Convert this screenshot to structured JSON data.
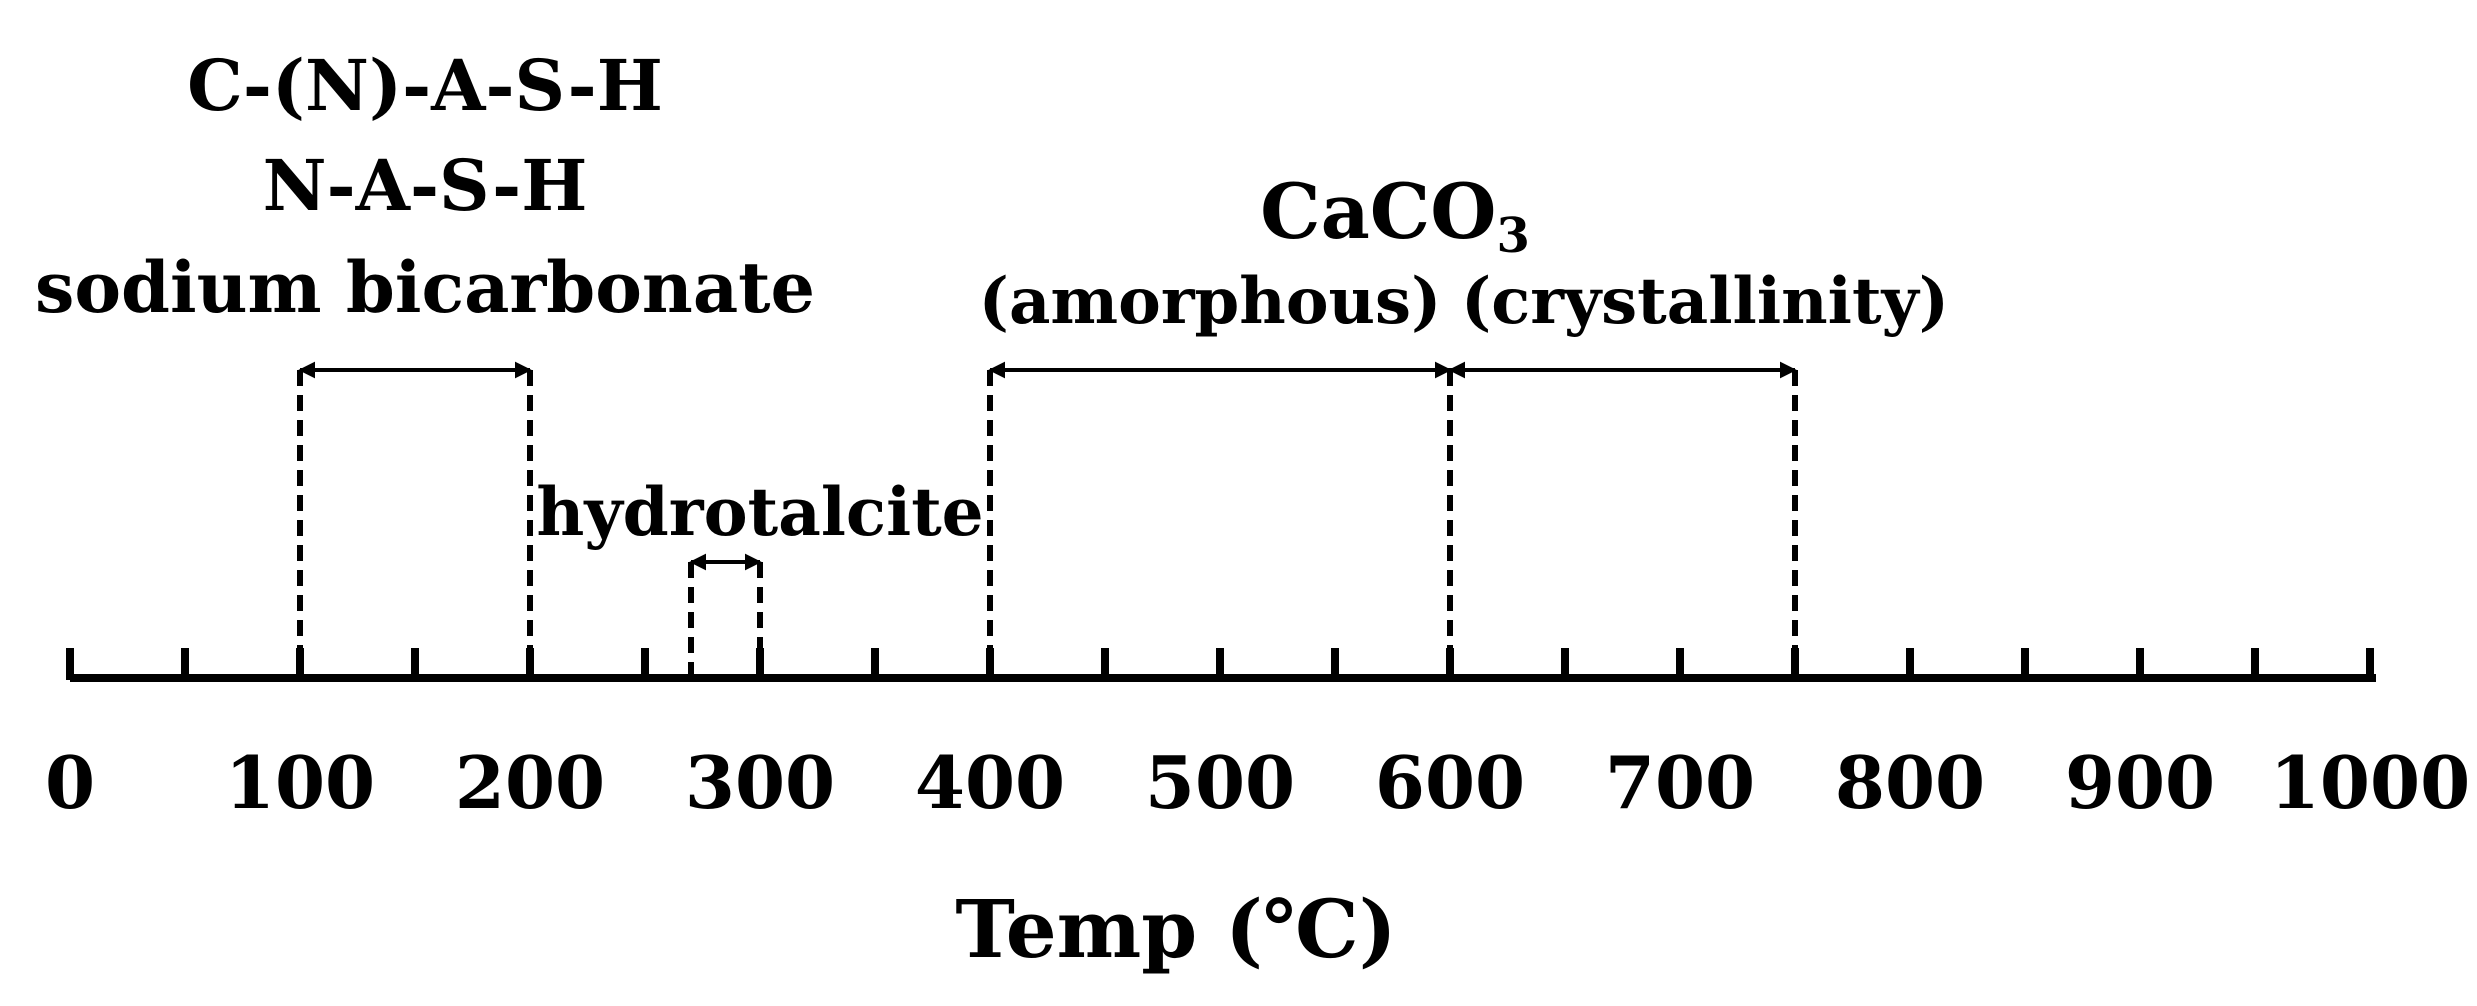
{
  "axis": {
    "min": 0,
    "max": 1000,
    "major_step": 100,
    "minor_step": 50,
    "tick_labels": [
      "0",
      "100",
      "200",
      "300",
      "400",
      "500",
      "600",
      "700",
      "800",
      "900",
      "1000"
    ],
    "title": "Temp (℃)"
  },
  "ranges": [
    {
      "id": "csh",
      "start": 100,
      "end": 200,
      "level": "high"
    },
    {
      "id": "hydrotalcite",
      "start": 270,
      "end": 300,
      "level": "low"
    },
    {
      "id": "amorphous",
      "start": 400,
      "end": 600,
      "level": "high"
    },
    {
      "id": "crystalline",
      "start": 600,
      "end": 750,
      "level": "high"
    }
  ],
  "labels": {
    "c_n_a_s_h": "C-(N)-A-S-H",
    "n_a_s_h": "N-A-S-H",
    "sodium_bicarbonate": "sodium bicarbonate",
    "hydrotalcite": "hydrotalcite",
    "caco3_main": "CaCO",
    "caco3_sub": "3",
    "amorphous": "(amorphous)",
    "crystallinity": "(crystallinity)"
  },
  "colors": {
    "ink": "#000000",
    "background": "#ffffff"
  }
}
